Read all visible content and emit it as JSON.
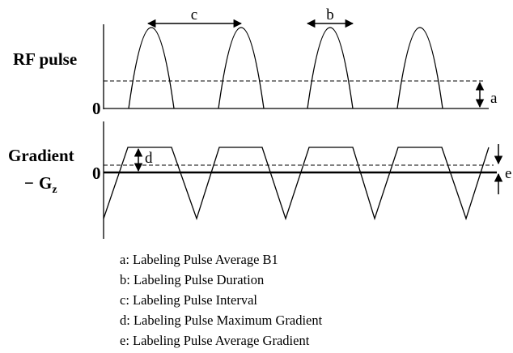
{
  "labels": {
    "rf_pulse": "RF pulse",
    "gradient_line1": "Gradient",
    "gradient_dash": "−",
    "gradient_g": "G",
    "gradient_sub": "z",
    "zero_rf": "0",
    "zero_grad": "0"
  },
  "markers": {
    "a": "a",
    "b": "b",
    "c": "c",
    "d": "d",
    "e": "e"
  },
  "legend": [
    "a: Labeling Pulse Average B1",
    "b: Labeling Pulse Duration",
    "c: Labeling Pulse Interval",
    "d: Labeling Pulse Maximum Gradient",
    "e: Labeling Pulse Average Gradient"
  ],
  "colors": {
    "stroke": "#000000",
    "background": "#ffffff"
  }
}
